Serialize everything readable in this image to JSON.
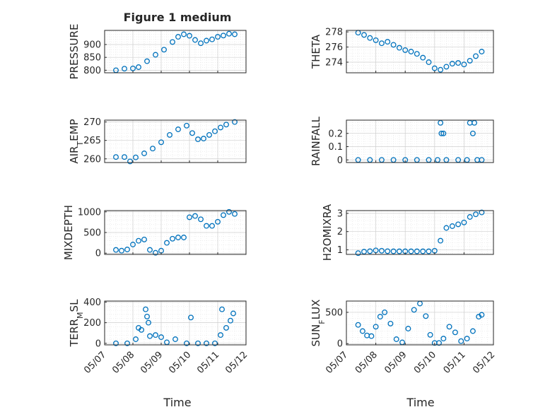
{
  "figure": {
    "title": "Figure 1 medium",
    "xlabel": "Time"
  },
  "x_tick_labels": [
    "05/07",
    "05/08",
    "05/09",
    "05/10",
    "05/11",
    "05/12"
  ],
  "marker_color": "#0072BD",
  "chart_data": [
    {
      "type": "scatter",
      "name": "pressure",
      "ylabel": "PRESSURE",
      "ylim": [
        790,
        955
      ],
      "yticks": [
        800,
        850,
        900
      ],
      "ytick_labels": [
        "800",
        "850",
        "900"
      ],
      "xlim": [
        0,
        5
      ],
      "grid": true,
      "x": [
        0.4,
        0.7,
        1.0,
        1.2,
        1.5,
        1.8,
        2.1,
        2.4,
        2.6,
        2.8,
        3.0,
        3.2,
        3.4,
        3.6,
        3.8,
        4.0,
        4.2,
        4.4,
        4.6
      ],
      "y": [
        800,
        806,
        807,
        812,
        835,
        860,
        880,
        910,
        930,
        940,
        934,
        918,
        905,
        915,
        920,
        930,
        935,
        942,
        940
      ]
    },
    {
      "type": "scatter",
      "name": "theta",
      "ylabel": "THETA",
      "ylim": [
        272.6,
        278.2
      ],
      "yticks": [
        274,
        276,
        278
      ],
      "ytick_labels": [
        "274",
        "276",
        "278"
      ],
      "xlim": [
        0,
        5
      ],
      "grid": true,
      "x": [
        0.4,
        0.6,
        0.8,
        1.0,
        1.2,
        1.4,
        1.6,
        1.8,
        2.0,
        2.2,
        2.4,
        2.6,
        2.8,
        3.0,
        3.2,
        3.4,
        3.6,
        3.8,
        4.0,
        4.2,
        4.4,
        4.6
      ],
      "y": [
        277.9,
        277.6,
        277.2,
        276.9,
        276.5,
        276.7,
        276.3,
        275.9,
        275.6,
        275.4,
        275.1,
        274.6,
        274.0,
        273.2,
        273.0,
        273.4,
        273.8,
        273.9,
        273.7,
        274.2,
        274.8,
        275.4
      ]
    },
    {
      "type": "scatter",
      "name": "air_temp",
      "ylabel": "AIR_TEMP",
      "ylim": [
        259,
        270.5
      ],
      "yticks": [
        260,
        265,
        270
      ],
      "ytick_labels": [
        "260",
        "265",
        "270"
      ],
      "xlim": [
        0,
        5
      ],
      "grid": true,
      "x": [
        0.4,
        0.7,
        0.9,
        1.1,
        1.4,
        1.7,
        2.0,
        2.3,
        2.6,
        2.9,
        3.1,
        3.3,
        3.5,
        3.7,
        3.9,
        4.1,
        4.3,
        4.6
      ],
      "y": [
        260.5,
        260.5,
        259.3,
        260.4,
        261.5,
        262.8,
        264.5,
        266.5,
        268.0,
        269.0,
        267.0,
        265.3,
        265.5,
        266.5,
        267.5,
        268.5,
        269.3,
        270.0
      ]
    },
    {
      "type": "scatter",
      "name": "rainfall",
      "ylabel": "RAINFALL",
      "ylim": [
        -0.02,
        0.3
      ],
      "yticks": [
        0,
        0.1,
        0.2
      ],
      "ytick_labels": [
        "0",
        "0.1",
        "0.2"
      ],
      "xlim": [
        0,
        5
      ],
      "grid": true,
      "x": [
        0.4,
        0.8,
        1.2,
        1.6,
        2.0,
        2.4,
        2.8,
        3.1,
        3.2,
        3.23,
        3.3,
        3.4,
        3.8,
        4.1,
        4.2,
        4.3,
        4.35,
        4.45,
        4.6
      ],
      "y": [
        0,
        0,
        0,
        0,
        0,
        0,
        0,
        0,
        0.28,
        0.2,
        0.2,
        0,
        0,
        0,
        0.28,
        0.2,
        0.28,
        0,
        0
      ]
    },
    {
      "type": "scatter",
      "name": "mixdepth",
      "ylabel": "MIXDEPTH",
      "ylim": [
        -30,
        1030
      ],
      "yticks": [
        0,
        500,
        1000
      ],
      "ytick_labels": [
        "0",
        "500",
        "1000"
      ],
      "xlim": [
        0,
        5
      ],
      "grid": true,
      "x": [
        0.4,
        0.6,
        0.8,
        1.0,
        1.2,
        1.4,
        1.6,
        1.8,
        2.0,
        2.2,
        2.4,
        2.6,
        2.8,
        3.0,
        3.2,
        3.4,
        3.6,
        3.8,
        4.0,
        4.2,
        4.4,
        4.6
      ],
      "y": [
        80,
        60,
        90,
        210,
        300,
        330,
        80,
        10,
        60,
        250,
        350,
        380,
        380,
        870,
        900,
        820,
        660,
        660,
        760,
        920,
        1000,
        950
      ]
    },
    {
      "type": "scatter",
      "name": "h2omixra",
      "ylabel": "H2OMIXRA",
      "ylim": [
        0.75,
        3.15
      ],
      "yticks": [
        1,
        2,
        3
      ],
      "ytick_labels": [
        "1",
        "2",
        "3"
      ],
      "xlim": [
        0,
        5
      ],
      "grid": true,
      "x": [
        0.4,
        0.6,
        0.8,
        1.0,
        1.2,
        1.4,
        1.6,
        1.8,
        2.0,
        2.2,
        2.4,
        2.6,
        2.8,
        3.0,
        3.2,
        3.4,
        3.6,
        3.8,
        4.0,
        4.2,
        4.4,
        4.6
      ],
      "y": [
        0.82,
        0.9,
        0.93,
        0.97,
        0.95,
        0.93,
        0.92,
        0.92,
        0.92,
        0.92,
        0.92,
        0.92,
        0.92,
        0.95,
        1.5,
        2.2,
        2.3,
        2.4,
        2.5,
        2.8,
        2.95,
        3.05
      ]
    },
    {
      "type": "scatter",
      "name": "terr_msl",
      "ylabel": "TERR_MSL",
      "ylim": [
        -15,
        410
      ],
      "yticks": [
        0,
        200,
        400
      ],
      "ytick_labels": [
        "0",
        "200",
        "400"
      ],
      "xlim": [
        0,
        5
      ],
      "grid": true,
      "x": [
        0.4,
        0.8,
        1.1,
        1.2,
        1.3,
        1.45,
        1.5,
        1.55,
        1.6,
        1.8,
        2.0,
        2.2,
        2.5,
        2.9,
        3.05,
        3.3,
        3.6,
        3.9,
        4.1,
        4.15,
        4.3,
        4.45,
        4.55
      ],
      "y": [
        0,
        0,
        40,
        150,
        130,
        330,
        260,
        200,
        70,
        80,
        60,
        10,
        40,
        0,
        250,
        0,
        0,
        0,
        80,
        330,
        150,
        220,
        290
      ]
    },
    {
      "type": "scatter",
      "name": "sun_flux",
      "ylabel": "SUN_FLUX",
      "ylim": [
        -20,
        680
      ],
      "yticks": [
        0,
        500
      ],
      "ytick_labels": [
        "0",
        "500"
      ],
      "xlim": [
        0,
        5
      ],
      "grid": true,
      "x": [
        0.4,
        0.55,
        0.7,
        0.85,
        1.0,
        1.15,
        1.3,
        1.5,
        1.7,
        1.9,
        2.1,
        2.3,
        2.5,
        2.7,
        2.85,
        3.0,
        3.15,
        3.3,
        3.5,
        3.7,
        3.9,
        4.1,
        4.3,
        4.5,
        4.6
      ],
      "y": [
        300,
        200,
        130,
        120,
        270,
        430,
        500,
        320,
        70,
        20,
        240,
        540,
        640,
        440,
        140,
        10,
        10,
        80,
        270,
        180,
        40,
        80,
        200,
        430,
        460
      ]
    }
  ]
}
